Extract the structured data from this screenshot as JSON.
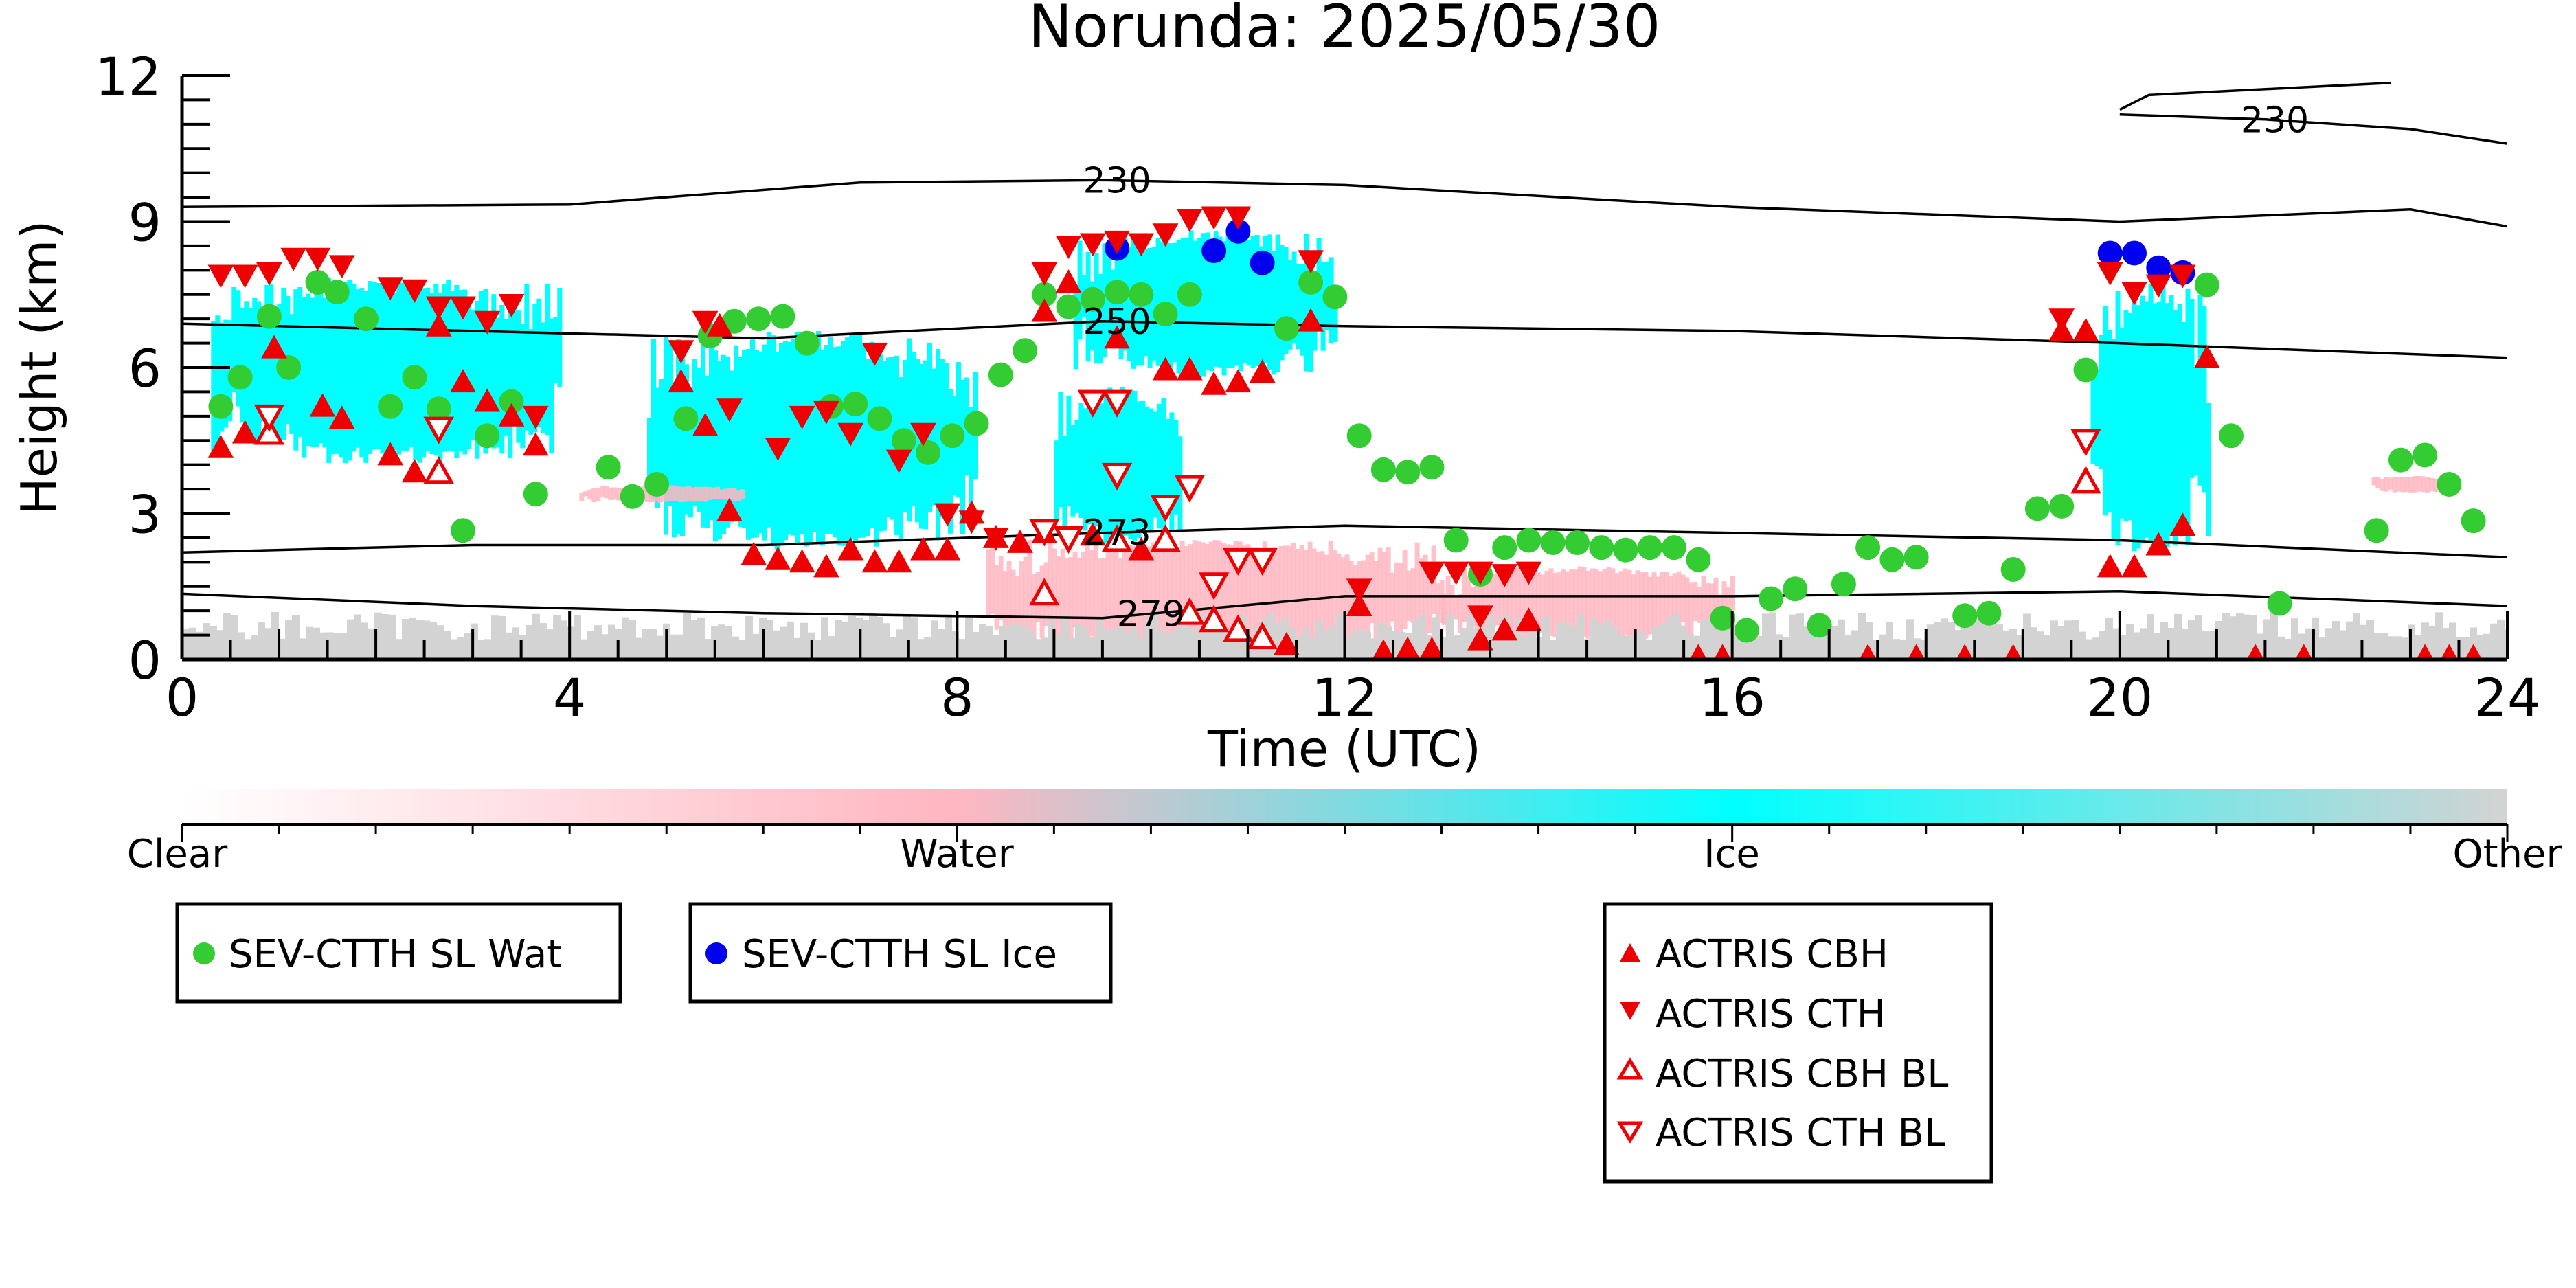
{
  "chart_data": {
    "type": "scatter",
    "title": "Norunda: 2025/05/30",
    "xlabel": "Time (UTC)",
    "ylabel": "Height (km)",
    "xlim": [
      0,
      24
    ],
    "ylim": [
      0,
      12
    ],
    "xticks": [
      "0",
      "4",
      "8",
      "12",
      "16",
      "20",
      "24"
    ],
    "yticks": [
      "0",
      "3",
      "6",
      "9",
      "12"
    ],
    "colorbar": {
      "labels": [
        "Clear",
        "Water",
        "Ice",
        "Other"
      ],
      "colors": [
        "#ffffff",
        "#ffb6c1",
        "#00ffff",
        "#d3d3d3"
      ]
    },
    "cloud_regions": [
      {
        "class": "ice",
        "color": "#00ffff",
        "x": [
          0.3,
          3.9
        ],
        "y": [
          3.8,
          8.1
        ]
      },
      {
        "class": "ice",
        "color": "#00ffff",
        "x": [
          4.8,
          8.2
        ],
        "y": [
          2.0,
          7.0
        ]
      },
      {
        "class": "ice",
        "color": "#00ffff",
        "x": [
          9.0,
          10.3
        ],
        "y": [
          2.2,
          5.8
        ]
      },
      {
        "class": "ice",
        "color": "#00ffff",
        "x": [
          9.2,
          11.9
        ],
        "y": [
          5.6,
          9.0
        ]
      },
      {
        "class": "ice",
        "color": "#00ffff",
        "x": [
          19.7,
          20.9
        ],
        "y": [
          1.8,
          8.1
        ]
      },
      {
        "class": "water",
        "color": "#ffb6c1",
        "x": [
          8.3,
          13.0
        ],
        "y": [
          0.0,
          2.6
        ]
      },
      {
        "class": "water",
        "color": "#ffb6c1",
        "x": [
          13.0,
          16.0
        ],
        "y": [
          0.3,
          2.0
        ]
      },
      {
        "class": "water",
        "color": "#ffb6c1",
        "x": [
          4.1,
          5.8
        ],
        "y": [
          3.2,
          3.6
        ]
      },
      {
        "class": "water",
        "color": "#ffb6c1",
        "x": [
          22.6,
          23.4
        ],
        "y": [
          3.4,
          3.8
        ]
      },
      {
        "class": "other",
        "color": "#d3d3d3",
        "x": [
          0,
          24
        ],
        "y": [
          0,
          1.3
        ]
      }
    ],
    "isotherms": [
      {
        "label": "230",
        "x": [
          0,
          4,
          7,
          9.5,
          12,
          16,
          20,
          23,
          24
        ],
        "y": [
          9.3,
          9.35,
          9.8,
          9.85,
          9.75,
          9.3,
          9.0,
          9.25,
          8.9
        ]
      },
      {
        "label": "230",
        "x": [
          20.0,
          21.5,
          23.0,
          24.0
        ],
        "y": [
          11.2,
          11.1,
          10.9,
          10.6
        ]
      },
      {
        "label": "250",
        "x": [
          0,
          3,
          6,
          9.5,
          12,
          16,
          20,
          24
        ],
        "y": [
          6.9,
          6.75,
          6.6,
          6.95,
          6.85,
          6.75,
          6.5,
          6.2
        ]
      },
      {
        "label": "273",
        "x": [
          0,
          3,
          6,
          9.5,
          12,
          16,
          20,
          24
        ],
        "y": [
          2.2,
          2.35,
          2.35,
          2.6,
          2.75,
          2.6,
          2.45,
          2.1
        ]
      },
      {
        "label": "279",
        "x": [
          0,
          3,
          6,
          9.5,
          12,
          16,
          20,
          24
        ],
        "y": [
          1.35,
          1.1,
          0.95,
          0.85,
          1.3,
          1.3,
          1.4,
          1.1
        ]
      }
    ],
    "series": [
      {
        "name": "SEV-CTTH SL Wat",
        "color": "#33cc33",
        "marker": "circle",
        "points": [
          [
            0.4,
            5.2
          ],
          [
            0.6,
            5.8
          ],
          [
            0.9,
            7.05
          ],
          [
            1.1,
            6.0
          ],
          [
            1.4,
            7.75
          ],
          [
            1.6,
            7.55
          ],
          [
            1.9,
            7.0
          ],
          [
            2.15,
            5.2
          ],
          [
            2.4,
            5.8
          ],
          [
            2.65,
            5.15
          ],
          [
            2.9,
            2.65
          ],
          [
            3.15,
            4.6
          ],
          [
            3.4,
            5.3
          ],
          [
            3.65,
            3.4
          ],
          [
            4.4,
            3.95
          ],
          [
            4.65,
            3.35
          ],
          [
            4.9,
            3.6
          ],
          [
            5.2,
            4.95
          ],
          [
            5.45,
            6.65
          ],
          [
            5.7,
            6.95
          ],
          [
            5.95,
            7.0
          ],
          [
            6.2,
            7.05
          ],
          [
            6.45,
            6.5
          ],
          [
            6.7,
            5.2
          ],
          [
            6.95,
            5.25
          ],
          [
            7.2,
            4.95
          ],
          [
            7.45,
            4.5
          ],
          [
            7.7,
            4.25
          ],
          [
            7.95,
            4.6
          ],
          [
            8.2,
            4.85
          ],
          [
            8.45,
            5.85
          ],
          [
            8.7,
            6.35
          ],
          [
            8.9,
            7.5
          ],
          [
            9.15,
            7.25
          ],
          [
            9.4,
            7.4
          ],
          [
            9.65,
            7.55
          ],
          [
            9.9,
            7.5
          ],
          [
            10.15,
            7.1
          ],
          [
            10.4,
            7.5
          ],
          [
            11.4,
            6.8
          ],
          [
            11.65,
            7.75
          ],
          [
            11.9,
            7.45
          ],
          [
            12.15,
            4.6
          ],
          [
            12.4,
            3.9
          ],
          [
            12.65,
            3.85
          ],
          [
            12.9,
            3.95
          ],
          [
            13.15,
            2.45
          ],
          [
            13.4,
            1.75
          ],
          [
            13.65,
            2.3
          ],
          [
            13.9,
            2.45
          ],
          [
            14.15,
            2.4
          ],
          [
            14.4,
            2.4
          ],
          [
            14.65,
            2.3
          ],
          [
            14.9,
            2.25
          ],
          [
            15.15,
            2.3
          ],
          [
            15.4,
            2.3
          ],
          [
            15.65,
            2.05
          ],
          [
            15.9,
            0.85
          ],
          [
            16.15,
            0.6
          ],
          [
            16.4,
            1.25
          ],
          [
            16.65,
            1.45
          ],
          [
            16.9,
            0.7
          ],
          [
            17.15,
            1.55
          ],
          [
            17.4,
            2.3
          ],
          [
            17.65,
            2.05
          ],
          [
            17.9,
            2.1
          ],
          [
            18.4,
            0.9
          ],
          [
            18.65,
            0.95
          ],
          [
            18.9,
            1.85
          ],
          [
            19.15,
            3.1
          ],
          [
            19.4,
            3.15
          ],
          [
            19.65,
            5.95
          ],
          [
            20.9,
            7.7
          ],
          [
            21.15,
            4.6
          ],
          [
            21.65,
            1.15
          ],
          [
            22.65,
            2.65
          ],
          [
            22.9,
            4.1
          ],
          [
            23.15,
            4.2
          ],
          [
            23.4,
            3.6
          ],
          [
            23.65,
            2.85
          ]
        ]
      },
      {
        "name": "SEV-CTTH SL Ice",
        "color": "#0000ee",
        "marker": "circle",
        "points": [
          [
            9.65,
            8.45
          ],
          [
            10.65,
            8.4
          ],
          [
            10.9,
            8.8
          ],
          [
            11.15,
            8.15
          ],
          [
            19.9,
            8.35
          ],
          [
            20.15,
            8.35
          ],
          [
            20.4,
            8.05
          ],
          [
            20.65,
            7.95
          ]
        ]
      },
      {
        "name": "ACTRIS CBH",
        "color": "#ee0000",
        "marker": "triangle-up",
        "points": [
          [
            0.4,
            4.35
          ],
          [
            0.65,
            4.65
          ],
          [
            0.9,
            4.65
          ],
          [
            0.95,
            6.4
          ],
          [
            1.45,
            5.2
          ],
          [
            1.65,
            4.95
          ],
          [
            2.15,
            4.2
          ],
          [
            2.4,
            3.85
          ],
          [
            2.65,
            6.85
          ],
          [
            2.65,
            3.85
          ],
          [
            2.9,
            5.7
          ],
          [
            3.15,
            5.3
          ],
          [
            3.4,
            5.0
          ],
          [
            3.65,
            4.4
          ],
          [
            5.15,
            5.7
          ],
          [
            5.4,
            4.8
          ],
          [
            5.55,
            6.85
          ],
          [
            5.65,
            3.05
          ],
          [
            5.9,
            2.15
          ],
          [
            6.15,
            2.05
          ],
          [
            6.4,
            2.0
          ],
          [
            6.65,
            1.9
          ],
          [
            6.9,
            2.25
          ],
          [
            7.15,
            2.0
          ],
          [
            7.4,
            2.0
          ],
          [
            7.65,
            2.25
          ],
          [
            7.9,
            2.25
          ],
          [
            8.15,
            3.0
          ],
          [
            8.4,
            2.5
          ],
          [
            8.65,
            2.4
          ],
          [
            8.9,
            2.6
          ],
          [
            8.9,
            7.15
          ],
          [
            9.15,
            7.75
          ],
          [
            9.4,
            2.55
          ],
          [
            9.65,
            6.6
          ],
          [
            9.9,
            2.25
          ],
          [
            10.15,
            5.95
          ],
          [
            10.4,
            5.95
          ],
          [
            10.65,
            5.65
          ],
          [
            10.9,
            5.7
          ],
          [
            11.15,
            5.9
          ],
          [
            11.4,
            0.3
          ],
          [
            11.65,
            6.95
          ],
          [
            12.15,
            1.1
          ],
          [
            12.4,
            0.15
          ],
          [
            12.65,
            0.2
          ],
          [
            12.9,
            0.2
          ],
          [
            13.4,
            0.4
          ],
          [
            13.65,
            0.6
          ],
          [
            13.9,
            0.8
          ],
          [
            15.65,
            0.05
          ],
          [
            15.9,
            0.05
          ],
          [
            17.4,
            0.05
          ],
          [
            17.9,
            0.05
          ],
          [
            18.4,
            0.05
          ],
          [
            18.9,
            0.05
          ],
          [
            19.4,
            6.75
          ],
          [
            19.65,
            6.75
          ],
          [
            19.9,
            1.9
          ],
          [
            20.15,
            1.9
          ],
          [
            20.4,
            2.35
          ],
          [
            20.65,
            2.75
          ],
          [
            20.9,
            6.2
          ],
          [
            21.4,
            0.05
          ],
          [
            21.9,
            0.05
          ],
          [
            23.15,
            0.05
          ],
          [
            23.4,
            0.05
          ],
          [
            23.65,
            0.05
          ]
        ]
      },
      {
        "name": "ACTRIS CTH",
        "color": "#ee0000",
        "marker": "triangle-down",
        "points": [
          [
            0.4,
            7.9
          ],
          [
            0.65,
            7.9
          ],
          [
            0.9,
            7.95
          ],
          [
            1.15,
            8.25
          ],
          [
            1.4,
            8.25
          ],
          [
            1.65,
            8.1
          ],
          [
            2.15,
            7.65
          ],
          [
            2.4,
            7.6
          ],
          [
            2.65,
            7.25
          ],
          [
            2.9,
            7.25
          ],
          [
            3.15,
            6.95
          ],
          [
            3.4,
            7.3
          ],
          [
            3.65,
            5.0
          ],
          [
            5.15,
            6.35
          ],
          [
            5.4,
            6.95
          ],
          [
            5.65,
            5.15
          ],
          [
            6.15,
            4.35
          ],
          [
            6.4,
            5.0
          ],
          [
            6.65,
            5.1
          ],
          [
            6.9,
            4.65
          ],
          [
            7.15,
            6.3
          ],
          [
            7.4,
            4.1
          ],
          [
            7.65,
            4.65
          ],
          [
            7.9,
            3.0
          ],
          [
            8.15,
            2.85
          ],
          [
            8.4,
            2.5
          ],
          [
            8.9,
            7.95
          ],
          [
            9.15,
            8.5
          ],
          [
            9.4,
            8.55
          ],
          [
            9.65,
            8.6
          ],
          [
            9.9,
            8.55
          ],
          [
            10.15,
            8.75
          ],
          [
            10.4,
            9.05
          ],
          [
            10.65,
            9.1
          ],
          [
            10.9,
            9.1
          ],
          [
            11.65,
            8.2
          ],
          [
            12.15,
            1.45
          ],
          [
            12.9,
            1.8
          ],
          [
            13.15,
            1.8
          ],
          [
            13.4,
            1.8
          ],
          [
            13.65,
            1.75
          ],
          [
            13.9,
            1.8
          ],
          [
            13.4,
            0.9
          ],
          [
            19.4,
            7.0
          ],
          [
            19.9,
            7.95
          ],
          [
            20.15,
            7.55
          ],
          [
            20.4,
            7.7
          ],
          [
            20.65,
            7.9
          ]
        ]
      },
      {
        "name": "ACTRIS CBH BL",
        "color": "#ee0000",
        "marker": "triangle-up-open",
        "points": [
          [
            0.9,
            4.65
          ],
          [
            2.65,
            3.85
          ],
          [
            8.9,
            1.35
          ],
          [
            9.65,
            2.45
          ],
          [
            10.15,
            2.45
          ],
          [
            10.4,
            0.95
          ],
          [
            10.65,
            0.8
          ],
          [
            10.9,
            0.6
          ],
          [
            11.15,
            0.45
          ],
          [
            19.65,
            3.65
          ]
        ]
      },
      {
        "name": "ACTRIS CTH BL",
        "color": "#ee0000",
        "marker": "triangle-down-open",
        "points": [
          [
            0.9,
            5.0
          ],
          [
            2.65,
            4.75
          ],
          [
            8.9,
            2.65
          ],
          [
            9.15,
            2.5
          ],
          [
            9.4,
            5.3
          ],
          [
            9.65,
            5.3
          ],
          [
            9.65,
            3.8
          ],
          [
            10.15,
            3.15
          ],
          [
            10.4,
            3.55
          ],
          [
            10.65,
            1.55
          ],
          [
            10.9,
            2.05
          ],
          [
            11.15,
            2.05
          ],
          [
            19.65,
            4.5
          ]
        ]
      }
    ],
    "legends": [
      {
        "entries": [
          "SEV-CTTH SL Wat"
        ]
      },
      {
        "entries": [
          "SEV-CTTH SL Ice"
        ]
      },
      {
        "entries": [
          "ACTRIS CBH",
          "ACTRIS CTH",
          "ACTRIS CBH BL",
          "ACTRIS CTH BL"
        ]
      }
    ]
  }
}
